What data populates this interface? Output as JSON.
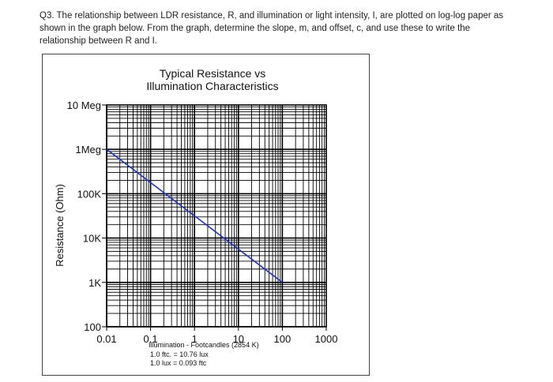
{
  "question": {
    "text": "Q3. The relationship between LDR resistance, R, and illumination or light intensity, I, are plotted on log-log paper as shown in the graph below. From the graph, determine the slope, m, and offset, c, and use these to write the relationship between R and I."
  },
  "chart_data": {
    "type": "line",
    "title": [
      "Typical Resistance vs",
      "Illumination Characteristics"
    ],
    "ylabel": "Resistance (Ohm)",
    "xlabel": "Illumination - Footcandles (2854 K)",
    "x_scale": "log",
    "y_scale": "log",
    "xlim": [
      0.01,
      1000
    ],
    "ylim": [
      100,
      10000000
    ],
    "x_ticks": [
      {
        "value": 0.01,
        "label": "0.01"
      },
      {
        "value": 0.1,
        "label": "0.1"
      },
      {
        "value": 1,
        "label": "1"
      },
      {
        "value": 10,
        "label": "10"
      },
      {
        "value": 100,
        "label": "100"
      },
      {
        "value": 1000,
        "label": "1000"
      }
    ],
    "y_ticks": [
      {
        "value": 10000000,
        "label": "10 Meg"
      },
      {
        "value": 1000000,
        "label": "1Meg"
      },
      {
        "value": 100000,
        "label": "100K"
      },
      {
        "value": 10000,
        "label": "10K"
      },
      {
        "value": 1000,
        "label": "1K"
      },
      {
        "value": 100,
        "label": "100"
      }
    ],
    "notes": [
      "1.0 ftc. = 10.76 lux",
      "1.0 lux = 0.093 ftc"
    ],
    "series": [
      {
        "color": "#2233cc",
        "x": [
          0.01,
          100
        ],
        "y": [
          1000000,
          1000
        ]
      }
    ],
    "grid": true
  }
}
